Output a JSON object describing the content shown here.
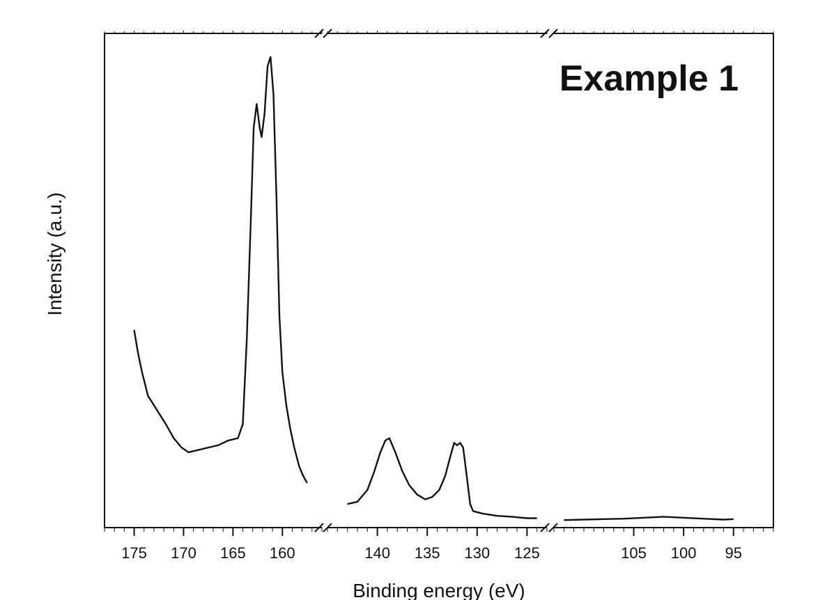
{
  "chart_data": {
    "type": "line",
    "annotation": "Example 1",
    "xlabel": "Binding energy (eV)",
    "ylabel": "Intensity (a.u.)",
    "x_reversed": true,
    "axis_breaks": true,
    "grid": false,
    "segments": [
      {
        "xlim": [
          178,
          156
        ],
        "ticks": [
          175,
          170,
          165,
          160
        ],
        "points": [
          [
            175,
            42
          ],
          [
            174.6,
            37
          ],
          [
            174.2,
            33
          ],
          [
            173.6,
            28
          ],
          [
            173,
            26
          ],
          [
            172.4,
            24
          ],
          [
            171.8,
            22
          ],
          [
            171,
            19
          ],
          [
            170.2,
            17
          ],
          [
            169.5,
            16
          ],
          [
            168.5,
            16.5
          ],
          [
            167.5,
            17
          ],
          [
            166.5,
            17.5
          ],
          [
            165.5,
            18.5
          ],
          [
            164.5,
            19
          ],
          [
            164,
            22
          ],
          [
            163.6,
            40
          ],
          [
            163.2,
            65
          ],
          [
            162.9,
            85
          ],
          [
            162.6,
            90
          ],
          [
            162.3,
            85
          ],
          [
            162.1,
            83
          ],
          [
            161.8,
            88
          ],
          [
            161.5,
            98
          ],
          [
            161.2,
            100
          ],
          [
            160.9,
            92
          ],
          [
            160.6,
            70
          ],
          [
            160.3,
            45
          ],
          [
            160,
            33
          ],
          [
            159.6,
            26
          ],
          [
            159.2,
            21
          ],
          [
            158.8,
            17
          ],
          [
            158.3,
            13
          ],
          [
            157.9,
            11
          ],
          [
            157.5,
            9.5
          ]
        ]
      },
      {
        "xlim": [
          145,
          123
        ],
        "ticks": [
          140,
          135,
          130,
          125
        ],
        "points": [
          [
            143,
            5
          ],
          [
            142,
            5.5
          ],
          [
            141,
            8
          ],
          [
            140.3,
            12
          ],
          [
            139.7,
            16
          ],
          [
            139.2,
            18.5
          ],
          [
            138.8,
            19
          ],
          [
            138.2,
            16
          ],
          [
            137.5,
            12
          ],
          [
            136.8,
            9
          ],
          [
            136,
            7
          ],
          [
            135.2,
            6
          ],
          [
            134.5,
            6.5
          ],
          [
            133.8,
            8
          ],
          [
            133.2,
            11
          ],
          [
            132.7,
            15
          ],
          [
            132.3,
            18
          ],
          [
            132,
            17.5
          ],
          [
            131.7,
            18
          ],
          [
            131.4,
            17
          ],
          [
            131.1,
            12
          ],
          [
            130.7,
            5
          ],
          [
            130.4,
            3.5
          ],
          [
            129.5,
            3
          ],
          [
            128,
            2.5
          ],
          [
            126.5,
            2.3
          ],
          [
            125,
            2
          ],
          [
            124,
            2
          ]
        ]
      },
      {
        "xlim": [
          113,
          91
        ],
        "ticks": [
          105,
          100,
          95
        ],
        "points": [
          [
            112,
            1.6
          ],
          [
            110,
            1.7
          ],
          [
            108,
            1.8
          ],
          [
            106,
            1.9
          ],
          [
            104,
            2.1
          ],
          [
            102,
            2.3
          ],
          [
            100,
            2.1
          ],
          [
            98,
            1.9
          ],
          [
            96,
            1.7
          ],
          [
            95,
            1.8
          ]
        ]
      }
    ]
  }
}
